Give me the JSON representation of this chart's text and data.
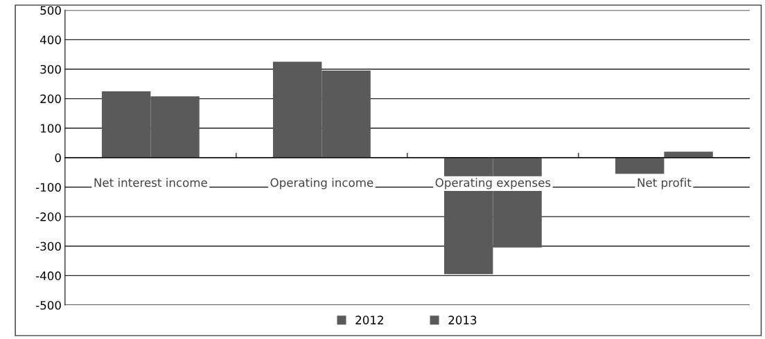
{
  "chart_data": {
    "type": "bar",
    "categories": [
      "Net interest income",
      "Operating income",
      "Operating expenses",
      "Net profit"
    ],
    "series": [
      {
        "name": "2012",
        "color": "#5a5a5a",
        "values": [
          225,
          325,
          -395,
          -55
        ]
      },
      {
        "name": "2013",
        "color": "#5a5a5a",
        "values": [
          208,
          295,
          -305,
          20
        ]
      }
    ],
    "ylim": [
      -500,
      500
    ],
    "yticks": [
      -500,
      -400,
      -300,
      -200,
      -100,
      0,
      100,
      200,
      300,
      400,
      500
    ],
    "grid": "y",
    "legend": "bottom"
  }
}
